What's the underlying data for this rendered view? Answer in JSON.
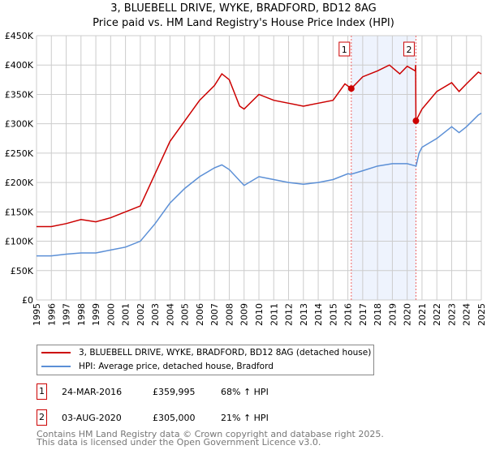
{
  "chart_data": {
    "type": "line",
    "title": "3, BLUEBELL DRIVE, WYKE, BRADFORD, BD12 8AG",
    "subtitle": "Price paid vs. HM Land Registry's House Price Index (HPI)",
    "xlim": [
      1995,
      2025
    ],
    "ylim": [
      0,
      450000
    ],
    "y_ticks": [
      0,
      50000,
      100000,
      150000,
      200000,
      250000,
      300000,
      350000,
      400000,
      450000
    ],
    "y_tick_labels": [
      "£0",
      "£50K",
      "£100K",
      "£150K",
      "£200K",
      "£250K",
      "£300K",
      "£350K",
      "£400K",
      "£450K"
    ],
    "x_tick_labels": [
      "1995",
      "1996",
      "1997",
      "1998",
      "1999",
      "2000",
      "2001",
      "2002",
      "2003",
      "2004",
      "2005",
      "2006",
      "2007",
      "2008",
      "2009",
      "2010",
      "2011",
      "2012",
      "2013",
      "2014",
      "2015",
      "2016",
      "2017",
      "2018",
      "2019",
      "2020",
      "2021",
      "2022",
      "2023",
      "2024",
      "2025"
    ],
    "grid": true,
    "shaded_range": [
      2016.23,
      2020.59
    ],
    "series": [
      {
        "name": "3, BLUEBELL DRIVE, WYKE, BRADFORD, BD12 8AG (detached house)",
        "color": "#cc0000",
        "x": [
          1995,
          1996,
          1997,
          1998,
          1999,
          2000,
          2001,
          2002,
          2003,
          2004,
          2005,
          2006,
          2007,
          2007.5,
          2008,
          2008.7,
          2009,
          2010,
          2011,
          2012,
          2013,
          2014,
          2015,
          2015.8,
          2016.23,
          2017,
          2018,
          2018.8,
          2019.5,
          2020,
          2020.55,
          2020.57,
          2020.59,
          2021,
          2022,
          2023,
          2023.5,
          2024,
          2024.8,
          2025
        ],
        "y": [
          125000,
          125000,
          130000,
          137000,
          133000,
          140000,
          150000,
          160000,
          215000,
          270000,
          305000,
          340000,
          365000,
          385000,
          375000,
          330000,
          325000,
          350000,
          340000,
          335000,
          330000,
          335000,
          340000,
          368000,
          360000,
          380000,
          390000,
          400000,
          385000,
          398000,
          390000,
          400000,
          305000,
          325000,
          355000,
          370000,
          355000,
          368000,
          388000,
          385000
        ]
      },
      {
        "name": "HPI: Average price, detached house, Bradford",
        "color": "#5b8fd6",
        "x": [
          1995,
          1996,
          1997,
          1998,
          1999,
          2000,
          2001,
          2002,
          2003,
          2004,
          2005,
          2006,
          2007,
          2007.5,
          2008,
          2009,
          2010,
          2011,
          2012,
          2013,
          2014,
          2015,
          2016,
          2016.2,
          2017,
          2018,
          2019,
          2020,
          2020.6,
          2020.8,
          2021,
          2022,
          2023,
          2023.5,
          2024,
          2024.8,
          2025
        ],
        "y": [
          75000,
          75000,
          78000,
          80000,
          80000,
          85000,
          90000,
          100000,
          130000,
          165000,
          190000,
          210000,
          225000,
          230000,
          222000,
          195000,
          210000,
          205000,
          200000,
          197000,
          200000,
          205000,
          215000,
          214000,
          220000,
          228000,
          232000,
          232000,
          228000,
          250000,
          260000,
          275000,
          295000,
          285000,
          295000,
          315000,
          318000
        ]
      }
    ],
    "annotations": [
      {
        "label": "1",
        "x": 2016.23,
        "y": 359995
      },
      {
        "label": "2",
        "x": 2020.59,
        "y": 305000
      }
    ]
  },
  "legend": {
    "red": "3, BLUEBELL DRIVE, WYKE, BRADFORD, BD12 8AG (detached house)",
    "blue": "HPI: Average price, detached house, Bradford"
  },
  "transactions": [
    {
      "n": "1",
      "date": "24-MAR-2016",
      "price": "£359,995",
      "hpi": "68% ↑ HPI"
    },
    {
      "n": "2",
      "date": "03-AUG-2020",
      "price": "£305,000",
      "hpi": "21% ↑ HPI"
    }
  ],
  "footer": {
    "line1": "Contains HM Land Registry data © Crown copyright and database right 2025.",
    "line2": "This data is licensed under the Open Government Licence v3.0."
  }
}
